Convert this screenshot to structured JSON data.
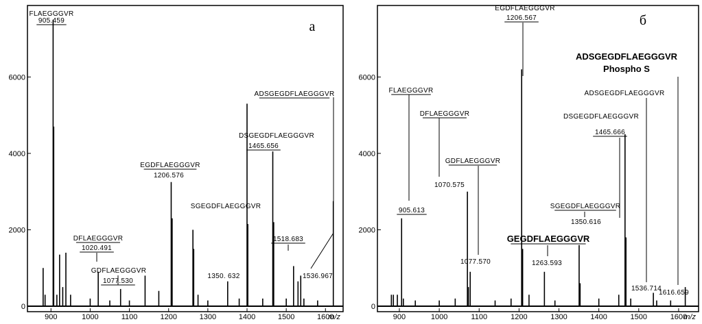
{
  "chart_data": [
    {
      "type": "bar",
      "panel_label": "а",
      "xlabel": "m/z",
      "ylabel": "",
      "xlim": [
        840,
        1645
      ],
      "ylim": [
        0,
        7800
      ],
      "xticks": [
        900,
        1000,
        1100,
        1200,
        1300,
        1400,
        1500,
        1600
      ],
      "yticks": [
        0,
        2000,
        4000,
        6000
      ],
      "grid": false,
      "peaks": [
        {
          "mz": 880,
          "intensity": 1000
        },
        {
          "mz": 885,
          "intensity": 300
        },
        {
          "mz": 905.459,
          "intensity": 7500
        },
        {
          "mz": 907,
          "intensity": 4700
        },
        {
          "mz": 915,
          "intensity": 300
        },
        {
          "mz": 922,
          "intensity": 1350
        },
        {
          "mz": 930,
          "intensity": 500
        },
        {
          "mz": 938,
          "intensity": 1400
        },
        {
          "mz": 950,
          "intensity": 300
        },
        {
          "mz": 1000,
          "intensity": 200
        },
        {
          "mz": 1020.491,
          "intensity": 900
        },
        {
          "mz": 1050,
          "intensity": 150
        },
        {
          "mz": 1077.53,
          "intensity": 450
        },
        {
          "mz": 1100,
          "intensity": 150
        },
        {
          "mz": 1140,
          "intensity": 800
        },
        {
          "mz": 1175,
          "intensity": 400
        },
        {
          "mz": 1206.576,
          "intensity": 3250
        },
        {
          "mz": 1209,
          "intensity": 2300
        },
        {
          "mz": 1262,
          "intensity": 2000
        },
        {
          "mz": 1264,
          "intensity": 1500
        },
        {
          "mz": 1275,
          "intensity": 300
        },
        {
          "mz": 1300,
          "intensity": 150
        },
        {
          "mz": 1350.632,
          "intensity": 650
        },
        {
          "mz": 1380,
          "intensity": 200
        },
        {
          "mz": 1400,
          "intensity": 5300
        },
        {
          "mz": 1402,
          "intensity": 2150
        },
        {
          "mz": 1440,
          "intensity": 200
        },
        {
          "mz": 1465.656,
          "intensity": 4050
        },
        {
          "mz": 1468,
          "intensity": 2200
        },
        {
          "mz": 1500,
          "intensity": 200
        },
        {
          "mz": 1518.683,
          "intensity": 1050
        },
        {
          "mz": 1530,
          "intensity": 650
        },
        {
          "mz": 1536.967,
          "intensity": 800
        },
        {
          "mz": 1545,
          "intensity": 200
        },
        {
          "mz": 1580,
          "intensity": 150
        },
        {
          "mz": 1620,
          "intensity": 2750
        }
      ],
      "annotations": [
        {
          "name": "FLAEGGGVR",
          "value": "905.459",
          "mz": 905.459,
          "intensity": 7500
        },
        {
          "name": "DFLAEGGGVR",
          "value": "1020.491",
          "mz": 1020.491,
          "intensity": 900
        },
        {
          "name": "GDFLAEGGGVR",
          "value": "1077.530",
          "mz": 1077.53,
          "intensity": 450
        },
        {
          "name": "EGDFLAEGGGVR",
          "value": "1206.576",
          "mz": 1206.576,
          "intensity": 3250
        },
        {
          "name": "SGEGDFLAEGGGVR",
          "value": "1350. 632",
          "mz": 1350.632,
          "intensity": 650
        },
        {
          "name": "DSGEGDFLAEGGGVR",
          "value": "1465.656",
          "mz": 1465.656,
          "intensity": 4050
        },
        {
          "name": "",
          "value": "1518.683",
          "mz": 1518.683,
          "intensity": 1050
        },
        {
          "name": "ADSGEGDFLAEGGGVR",
          "value": "1536.967",
          "mz": 1536.967,
          "intensity": 800
        }
      ]
    },
    {
      "type": "bar",
      "panel_label": "б",
      "xlabel": "m/z",
      "ylabel": "",
      "xlim": [
        845,
        1650
      ],
      "ylim": [
        0,
        7800
      ],
      "xticks": [
        900,
        1000,
        1100,
        1200,
        1300,
        1400,
        1500,
        1600
      ],
      "yticks": [
        0,
        2000,
        4000,
        6000
      ],
      "grid": false,
      "peaks": [
        {
          "mz": 880,
          "intensity": 300
        },
        {
          "mz": 885,
          "intensity": 300
        },
        {
          "mz": 895,
          "intensity": 300
        },
        {
          "mz": 905.613,
          "intensity": 2300
        },
        {
          "mz": 910,
          "intensity": 200
        },
        {
          "mz": 940,
          "intensity": 150
        },
        {
          "mz": 1000,
          "intensity": 150
        },
        {
          "mz": 1040,
          "intensity": 200
        },
        {
          "mz": 1070.575,
          "intensity": 3000
        },
        {
          "mz": 1073,
          "intensity": 500
        },
        {
          "mz": 1077.57,
          "intensity": 900
        },
        {
          "mz": 1140,
          "intensity": 150
        },
        {
          "mz": 1180,
          "intensity": 200
        },
        {
          "mz": 1206.567,
          "intensity": 6200
        },
        {
          "mz": 1209,
          "intensity": 1500
        },
        {
          "mz": 1225,
          "intensity": 300
        },
        {
          "mz": 1263.593,
          "intensity": 900
        },
        {
          "mz": 1290,
          "intensity": 150
        },
        {
          "mz": 1350.616,
          "intensity": 1600
        },
        {
          "mz": 1353,
          "intensity": 600
        },
        {
          "mz": 1400,
          "intensity": 200
        },
        {
          "mz": 1450,
          "intensity": 300
        },
        {
          "mz": 1465.666,
          "intensity": 4500
        },
        {
          "mz": 1468,
          "intensity": 1800
        },
        {
          "mz": 1480,
          "intensity": 200
        },
        {
          "mz": 1536.714,
          "intensity": 350
        },
        {
          "mz": 1545,
          "intensity": 150
        },
        {
          "mz": 1580,
          "intensity": 150
        },
        {
          "mz": 1616.659,
          "intensity": 500
        }
      ],
      "annotations": [
        {
          "name": "FLAEGGGVR",
          "value": "905.613",
          "mz": 905.613,
          "intensity": 2300
        },
        {
          "name": "DFLAEGGGVR",
          "value": "1070.575",
          "mz": 1070.575,
          "intensity": 3000
        },
        {
          "name": "GDFLAEGGGVR",
          "value": "1077.570",
          "mz": 1077.57,
          "intensity": 900
        },
        {
          "name": "EGDFLAEGGGVR",
          "value": "1206.567",
          "mz": 1206.567,
          "intensity": 6200
        },
        {
          "name": "GEGDFLAEGGGVR",
          "value": "1263.593",
          "mz": 1263.593,
          "intensity": 900
        },
        {
          "name": "SGEGDFLAEGGGVR",
          "value": "1350.616",
          "mz": 1350.616,
          "intensity": 1600
        },
        {
          "name": "DSGEGDFLAEGGGVR",
          "value": "1465.666",
          "mz": 1465.666,
          "intensity": 4500
        },
        {
          "name": "ADSGEGDFLAEGGGVR",
          "value": "1536.714",
          "mz": 1536.714,
          "intensity": 350
        },
        {
          "name": "ADSGEGDFLAEGGGVR",
          "subname": "Phospho S",
          "value": "1616.659",
          "mz": 1616.659,
          "intensity": 500
        }
      ]
    }
  ]
}
